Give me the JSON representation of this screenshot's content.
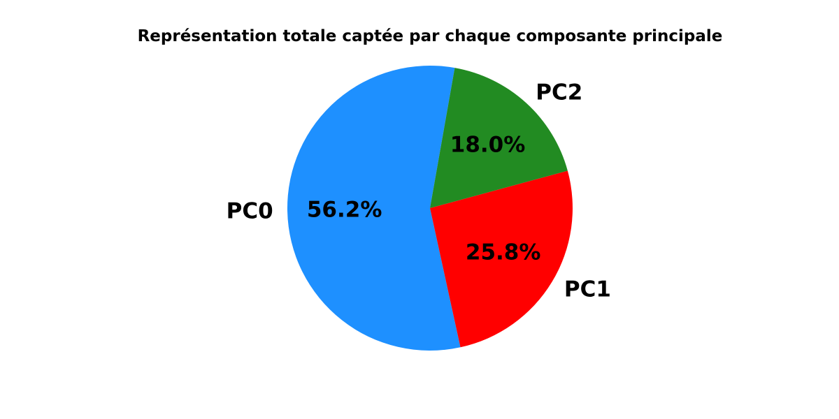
{
  "chart_data": {
    "type": "pie",
    "title": "Représentation totale captée par chaque composante principale",
    "labels": [
      "PC0",
      "PC1",
      "PC2"
    ],
    "values": [
      56.2,
      25.8,
      18.0
    ],
    "percent_labels": [
      "56.2%",
      "25.8%",
      "18.0%"
    ],
    "colors": [
      "#1e90ff",
      "#ff0000",
      "#228b22"
    ],
    "start_angle_deg": 80,
    "direction": "counterclockwise",
    "legend": "none"
  }
}
